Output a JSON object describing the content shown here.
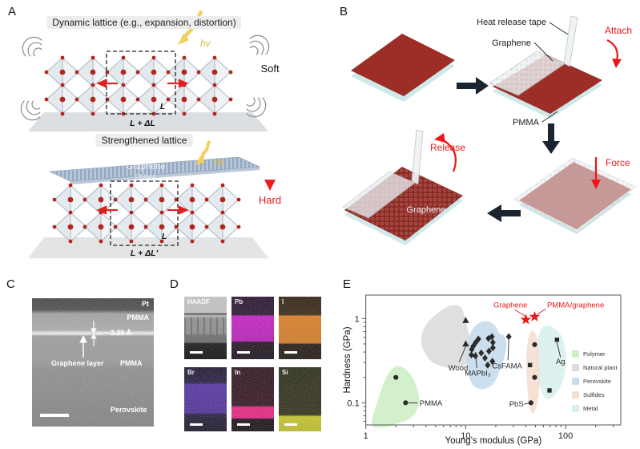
{
  "figure": {
    "panel_a": {
      "label": "A",
      "title_top": "Dynamic lattice (e.g., expansion, distortion)",
      "title_bottom": "Strengthened lattice",
      "hv": "hv",
      "soft": "Soft",
      "hard": "Hard",
      "graphene_label": "Graphene",
      "pmma_label": "PMMA",
      "l_label": "L",
      "delta_top": "L + ΔL",
      "delta_bottom": "L + ΔL'"
    },
    "panel_b": {
      "label": "B",
      "heat_release_tape": "Heat release tape",
      "graphene": "Graphene",
      "attach": "Attach",
      "pmma": "PMMA",
      "force": "Force",
      "release": "Release",
      "graphene_on_film": "Graphene",
      "accent_red": "#e81818",
      "film_color": "#9c2e27",
      "substrate_color": "#cfe8ea"
    },
    "panel_c": {
      "label": "C",
      "pt": "Pt",
      "pmma_top": "PMMA",
      "spacing": "~ 3.35 Å",
      "graphene_layer": "Graphene layer",
      "pmma_bottom": "PMMA",
      "perovskite": "Perovskite"
    },
    "panel_d": {
      "label": "D",
      "maps": [
        {
          "label": "HAADF",
          "color": "#b5b5b5"
        },
        {
          "label": "Pb",
          "color": "#c414c4"
        },
        {
          "label": "I",
          "color": "#dd7b1a"
        },
        {
          "label": "Br",
          "color": "#5a2fb8"
        },
        {
          "label": "In",
          "color": "#e8187a"
        },
        {
          "label": "Si",
          "color": "#c4c41e"
        }
      ]
    },
    "panel_e": {
      "label": "E"
    }
  },
  "chart_data": {
    "type": "scatter",
    "xlabel": "Young's modulus (GPa)",
    "ylabel": "Hardness (GPa)",
    "xscale": "log",
    "yscale": "log",
    "xlim": [
      1,
      350
    ],
    "ylim": [
      0.05,
      1.9
    ],
    "xticks": [
      1,
      10,
      100
    ],
    "yticks": [
      0.1,
      1
    ],
    "grid": false,
    "regions": [
      {
        "name": "Polymer",
        "color": "#cdeec6",
        "points": [
          [
            1.15,
            0.055
          ],
          [
            1.3,
            0.1
          ],
          [
            1.6,
            0.2
          ],
          [
            2.0,
            0.27
          ],
          [
            2.6,
            0.24
          ],
          [
            3.2,
            0.16
          ],
          [
            3.4,
            0.1
          ],
          [
            2.9,
            0.068
          ],
          [
            2.0,
            0.056
          ],
          [
            1.5,
            0.051
          ]
        ]
      },
      {
        "name": "Natural plant",
        "color": "#dcdcdc",
        "points": [
          [
            4.4,
            0.32
          ],
          [
            3.6,
            0.5
          ],
          [
            3.9,
            0.8
          ],
          [
            5.2,
            1.15
          ],
          [
            7.0,
            1.42
          ],
          [
            8.8,
            1.38
          ],
          [
            9.8,
            1.05
          ],
          [
            10.6,
            0.7
          ],
          [
            11.6,
            0.45
          ],
          [
            10.5,
            0.3
          ],
          [
            8.0,
            0.26
          ],
          [
            5.8,
            0.27
          ]
        ]
      },
      {
        "name": "Perovskite",
        "color": "#c7dcec",
        "points": [
          [
            11.5,
            0.17
          ],
          [
            10.3,
            0.28
          ],
          [
            10.5,
            0.5
          ],
          [
            11.5,
            0.72
          ],
          [
            13.5,
            0.88
          ],
          [
            16.5,
            0.93
          ],
          [
            19.5,
            0.83
          ],
          [
            22.0,
            0.66
          ],
          [
            24.5,
            0.62
          ],
          [
            25.5,
            0.45
          ],
          [
            23.0,
            0.28
          ],
          [
            19.0,
            0.17
          ],
          [
            14.5,
            0.145
          ]
        ]
      },
      {
        "name": "Metal",
        "color": "#d9efec",
        "points": [
          [
            62,
            0.82
          ],
          [
            80,
            0.74
          ],
          [
            95,
            0.55
          ],
          [
            101,
            0.33
          ],
          [
            95,
            0.19
          ],
          [
            79,
            0.125
          ],
          [
            64,
            0.112
          ],
          [
            55,
            0.16
          ],
          [
            50.5,
            0.3
          ],
          [
            53,
            0.58
          ]
        ]
      },
      {
        "name": "Sulfides",
        "color": "#f4ded0",
        "points": [
          [
            46,
            0.72
          ],
          [
            51,
            0.62
          ],
          [
            54,
            0.38
          ],
          [
            55,
            0.16
          ],
          [
            51,
            0.09
          ],
          [
            46,
            0.075
          ],
          [
            42.5,
            0.11
          ],
          [
            40.5,
            0.28
          ],
          [
            42,
            0.55
          ]
        ]
      }
    ],
    "series": [
      {
        "name": "PMMA",
        "marker": "circle",
        "color": "#2b2b2b",
        "points": [
          [
            2.0,
            0.2
          ],
          [
            2.5,
            0.1
          ]
        ]
      },
      {
        "name": "Wood",
        "marker": "triangle",
        "color": "#2b2b2b",
        "points": [
          [
            10,
            0.95
          ],
          [
            10,
            0.5
          ]
        ]
      },
      {
        "name": "MAPbI3",
        "marker": "diamond",
        "color": "#2b2b2b",
        "points": [
          [
            13.4,
            0.57
          ],
          [
            12.6,
            0.52
          ],
          [
            11.9,
            0.47
          ],
          [
            11.5,
            0.43
          ],
          [
            11.4,
            0.37
          ],
          [
            12.5,
            0.36
          ],
          [
            14.3,
            0.39
          ],
          [
            15.6,
            0.34
          ],
          [
            16.9,
            0.58
          ],
          [
            18.3,
            0.61
          ],
          [
            18.7,
            0.52
          ],
          [
            18.7,
            0.45
          ],
          [
            17.1,
            0.41
          ],
          [
            18.5,
            0.31
          ],
          [
            16.6,
            0.28
          ]
        ]
      },
      {
        "name": "CsFAMA",
        "marker": "diamond",
        "color": "#2b2b2b",
        "points": [
          [
            27,
            0.61
          ]
        ]
      },
      {
        "name": "sulfide-metals-circles",
        "marker": "circle",
        "color": "#2b2b2b",
        "points": [
          [
            49,
            0.49
          ],
          [
            49,
            0.2
          ],
          [
            45,
            0.1
          ]
        ]
      },
      {
        "name": "squares",
        "marker": "square",
        "color": "#2b2b2b",
        "points": [
          [
            44,
            0.28
          ],
          [
            82,
            0.56
          ],
          [
            69,
            0.14
          ]
        ]
      },
      {
        "name": "Graphene",
        "marker": "star",
        "color": "#e81818",
        "points": [
          [
            40,
            0.97
          ]
        ]
      },
      {
        "name": "PMMA/graphene",
        "marker": "star",
        "color": "#e81818",
        "points": [
          [
            49,
            1.05
          ]
        ]
      }
    ],
    "annotations": [
      {
        "text": "PMMA",
        "color": "#2b2b2b",
        "point": [
          2.5,
          0.1
        ],
        "line_end": [
          3.3,
          0.099
        ],
        "text_at": [
          3.45,
          0.098
        ],
        "anchor": "start",
        "dy": 3
      },
      {
        "text": "Wood",
        "color": "#2b2b2b",
        "point": [
          10,
          0.465
        ],
        "line_end": [
          8.6,
          0.305
        ],
        "text_at": [
          8.4,
          0.3
        ],
        "anchor": "middle",
        "dy": 10
      },
      {
        "text": "MAPbI₃",
        "color": "#2b2b2b",
        "point": [
          12.6,
          0.4
        ],
        "line_end": [
          12.9,
          0.26
        ],
        "text_at": [
          13.2,
          0.26
        ],
        "anchor": "middle",
        "dy": 10
      },
      {
        "text": "CsFAMA",
        "color": "#2b2b2b",
        "point": [
          27,
          0.56
        ],
        "line_end": [
          26.5,
          0.32
        ],
        "text_at": [
          26,
          0.32
        ],
        "anchor": "middle",
        "dy": 10
      },
      {
        "text": "PbS",
        "color": "#2b2b2b",
        "point": [
          45,
          0.1
        ],
        "line_end": [
          38.5,
          0.096
        ],
        "text_at": [
          38,
          0.096
        ],
        "anchor": "end",
        "dy": 3
      },
      {
        "text": "Ag",
        "color": "#2b2b2b",
        "point": [
          82,
          0.52
        ],
        "line_end": [
          89,
          0.345
        ],
        "text_at": [
          89,
          0.345
        ],
        "anchor": "middle",
        "dy": 8
      },
      {
        "text": "Graphene",
        "color": "#e81818",
        "point": [
          39.5,
          1.07
        ],
        "line_end": [
          31,
          1.27
        ],
        "text_at": [
          28,
          1.42
        ],
        "anchor": "middle",
        "dy": 2
      },
      {
        "text": "PMMA/graphene",
        "color": "#e81818",
        "point": [
          52,
          1.12
        ],
        "line_end": [
          63,
          1.3
        ],
        "text_at": [
          126,
          1.42
        ],
        "anchor": "middle",
        "dy": 2
      }
    ],
    "legend": [
      {
        "label": "Polymer",
        "color": "#cdeec6"
      },
      {
        "label": "Natural plant",
        "color": "#dcdcdc"
      },
      {
        "label": "Perovskite",
        "color": "#c7dcec"
      },
      {
        "label": "Sulfides",
        "color": "#f4ded0"
      },
      {
        "label": "Metal",
        "color": "#d9efec"
      }
    ],
    "legend_position": "right-inside"
  }
}
